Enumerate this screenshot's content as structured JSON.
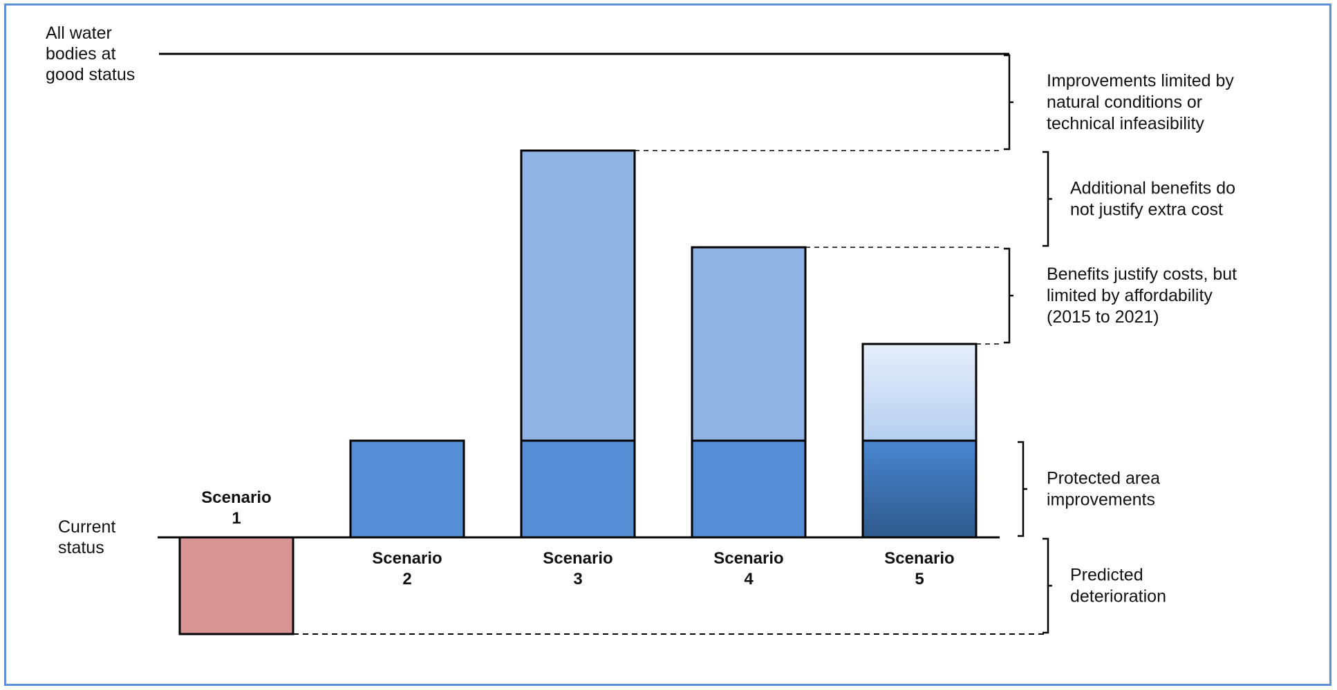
{
  "diagram": {
    "top_label": [
      "All water",
      "bodies at",
      "good status"
    ],
    "current_label": [
      "Current",
      "status"
    ],
    "scenarios": [
      {
        "line1": "Scenario",
        "line2": "1",
        "deterioration": 1.0,
        "protected": 0,
        "additional": 0,
        "top_style": "none"
      },
      {
        "line1": "Scenario",
        "line2": "2",
        "deterioration": 0,
        "protected": 1.0,
        "additional": 0,
        "top_style": "none"
      },
      {
        "line1": "Scenario",
        "line2": "3",
        "deterioration": 0,
        "protected": 1.0,
        "additional": 3.0,
        "top_style": "solid"
      },
      {
        "line1": "Scenario",
        "line2": "4",
        "deterioration": 0,
        "protected": 1.0,
        "additional": 2.0,
        "top_style": "solid"
      },
      {
        "line1": "Scenario",
        "line2": "5",
        "deterioration": 0,
        "protected": 1.0,
        "additional": 1.0,
        "top_style": "gradient"
      }
    ],
    "good_status_level": 5.0,
    "brackets": [
      {
        "lines": [
          "Improvements limited by",
          "natural conditions or",
          "technical infeasibility"
        ],
        "from": 4.0,
        "to": 5.0
      },
      {
        "lines": [
          "Additional benefits do",
          "not justify extra cost"
        ],
        "from": 3.0,
        "to": 4.0
      },
      {
        "lines": [
          "Benefits justify costs, but",
          "limited by affordability",
          "(2015 to 2021)"
        ],
        "from": 2.0,
        "to": 3.0
      },
      {
        "lines": [
          "Protected area",
          "improvements"
        ],
        "from": 0.0,
        "to": 1.0
      },
      {
        "lines": [
          "Predicted",
          "deterioration"
        ],
        "from": -1.0,
        "to": 0.0
      }
    ]
  },
  "colors": {
    "frame": "#5b8fd6",
    "deterioration": "#d99594",
    "protected": "#558ed5",
    "additional": "#8eb4e3",
    "gradient_light": "#e6eefb",
    "gradient_mid": "#b6cff0",
    "protected_dark": "#2e5a8c"
  }
}
